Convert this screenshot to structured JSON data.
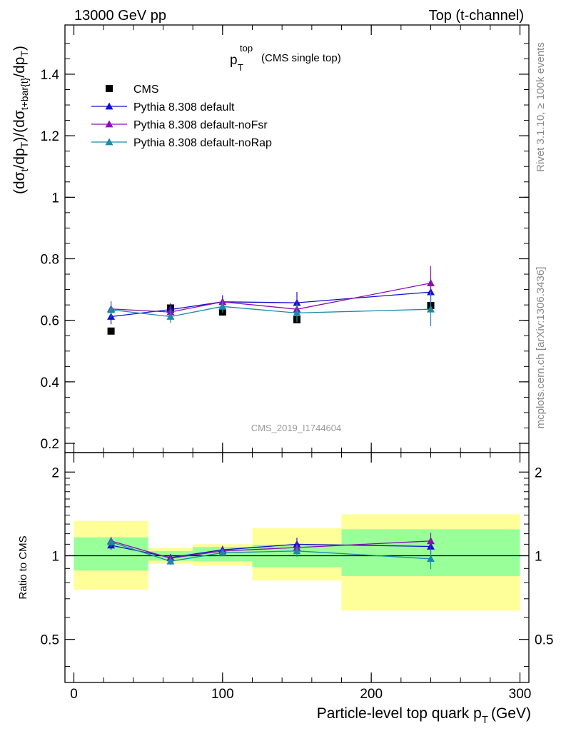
{
  "header": {
    "left": "13000 GeV pp",
    "right": "Top (t-channel)"
  },
  "side_labels": {
    "rivet": "Rivet 3.1.10, ≥ 100k events",
    "mcplots": "mcplots.cern.ch [arXiv:1306.3436]"
  },
  "plot_title": {
    "main": "p",
    "sub": "T",
    "sup": "top",
    "note": "(CMS single top)"
  },
  "watermark": "CMS_2019_I1744604",
  "colors": {
    "cms": "#000000",
    "default": "#1010cc",
    "noFsr": "#8a10b0",
    "noRap": "#1a8aa8",
    "band_inner": "#99ff99",
    "band_outer": "#ffff99"
  },
  "chart_data": [
    {
      "type": "scatter",
      "panel": "main",
      "ylabel": "(dσt/dpT)/(dσt+bar{t}/dpT)",
      "ylabel_parts": {
        "a": "(dσ",
        "a_sub": "t",
        "b": "/dp",
        "b_sub": "T",
        "c": ")/(dσ",
        "c_sub": "t+bar{t}",
        "d": "/dp",
        "d_sub": "T",
        "e": ")"
      },
      "xlim": [
        -6,
        306
      ],
      "ylim": [
        0.17,
        1.56
      ],
      "yticks": [
        0.2,
        0.4,
        0.6,
        0.8,
        1,
        1.2,
        1.4
      ],
      "ytick_labels": [
        "0.2",
        "0.4",
        "0.6",
        "0.8",
        "1",
        "1.2",
        "1.4"
      ],
      "x_bins": [
        [
          0,
          50
        ],
        [
          50,
          80
        ],
        [
          80,
          120
        ],
        [
          120,
          180
        ],
        [
          180,
          300
        ]
      ],
      "legend": [
        "CMS",
        "Pythia 8.308 default",
        "Pythia 8.308 default-noFsr",
        "Pythia 8.308 default-noRap"
      ],
      "legend_position": "top-left",
      "series": [
        {
          "name": "CMS",
          "marker": "square",
          "x": [
            25,
            65,
            100,
            150,
            240
          ],
          "y": [
            0.565,
            0.64,
            0.627,
            0.602,
            0.648
          ],
          "yerr": [
            0.005,
            0.008,
            0.008,
            0.008,
            0.01
          ]
        },
        {
          "name": "Pythia 8.308 default",
          "marker": "triangle",
          "x": [
            25,
            65,
            100,
            150,
            240
          ],
          "y": [
            0.612,
            0.635,
            0.66,
            0.657,
            0.692
          ],
          "yerr": [
            0.025,
            0.02,
            0.02,
            0.035,
            0.045
          ]
        },
        {
          "name": "Pythia 8.308 default-noFsr",
          "marker": "triangle",
          "x": [
            25,
            65,
            100,
            150,
            240
          ],
          "y": [
            0.637,
            0.627,
            0.66,
            0.636,
            0.721
          ],
          "yerr": [
            0.025,
            0.02,
            0.022,
            0.035,
            0.055
          ]
        },
        {
          "name": "Pythia 8.308 default-noRap",
          "marker": "triangle",
          "x": [
            25,
            65,
            100,
            150,
            240
          ],
          "y": [
            0.634,
            0.612,
            0.645,
            0.624,
            0.636
          ],
          "yerr": [
            0.025,
            0.02,
            0.02,
            0.03,
            0.055
          ]
        }
      ]
    },
    {
      "type": "scatter",
      "panel": "ratio",
      "ylabel": "Ratio to CMS",
      "xlabel": "Particle-level top quark pT (GeV)",
      "xlabel_parts": {
        "main": "Particle-level top quark p",
        "sub": "T",
        "unit": "(GeV)"
      },
      "xlim": [
        -6,
        306
      ],
      "ylim": [
        0.35,
        2.35
      ],
      "xticks": [
        0,
        100,
        200,
        300
      ],
      "xtick_labels": [
        "0",
        "100",
        "200",
        "300"
      ],
      "yticks": [
        0.5,
        1,
        2
      ],
      "ytick_labels": [
        "0.5",
        "1",
        "2"
      ],
      "reference": 1,
      "bands": [
        {
          "x": [
            0,
            50
          ],
          "inner": [
            0.885,
            1.165
          ],
          "outer": [
            0.755,
            1.335
          ]
        },
        {
          "x": [
            50,
            80
          ],
          "inner": [
            0.96,
            1.04
          ],
          "outer": [
            0.935,
            1.065
          ]
        },
        {
          "x": [
            80,
            120
          ],
          "inner": [
            0.955,
            1.075
          ],
          "outer": [
            0.92,
            1.1
          ]
        },
        {
          "x": [
            120,
            180
          ],
          "inner": [
            0.91,
            1.095
          ],
          "outer": [
            0.815,
            1.255
          ]
        },
        {
          "x": [
            180,
            300
          ],
          "inner": [
            0.845,
            1.245
          ],
          "outer": [
            0.635,
            1.41
          ]
        }
      ],
      "series": [
        {
          "name": "Pythia 8.308 default",
          "marker": "triangle",
          "x": [
            25,
            65,
            100,
            150,
            240
          ],
          "y": [
            1.09,
            0.985,
            1.05,
            1.1,
            1.08
          ],
          "yerr": [
            0.04,
            0.03,
            0.035,
            0.06,
            0.07
          ]
        },
        {
          "name": "Pythia 8.308 default-noFsr",
          "marker": "triangle",
          "x": [
            25,
            65,
            100,
            150,
            240
          ],
          "y": [
            1.13,
            0.98,
            1.04,
            1.07,
            1.13
          ],
          "yerr": [
            0.04,
            0.03,
            0.035,
            0.06,
            0.08
          ]
        },
        {
          "name": "Pythia 8.308 default-noRap",
          "marker": "triangle",
          "x": [
            25,
            65,
            100,
            150,
            240
          ],
          "y": [
            1.12,
            0.955,
            1.025,
            1.04,
            0.975
          ],
          "yerr": [
            0.04,
            0.03,
            0.03,
            0.05,
            0.08
          ]
        }
      ]
    }
  ]
}
